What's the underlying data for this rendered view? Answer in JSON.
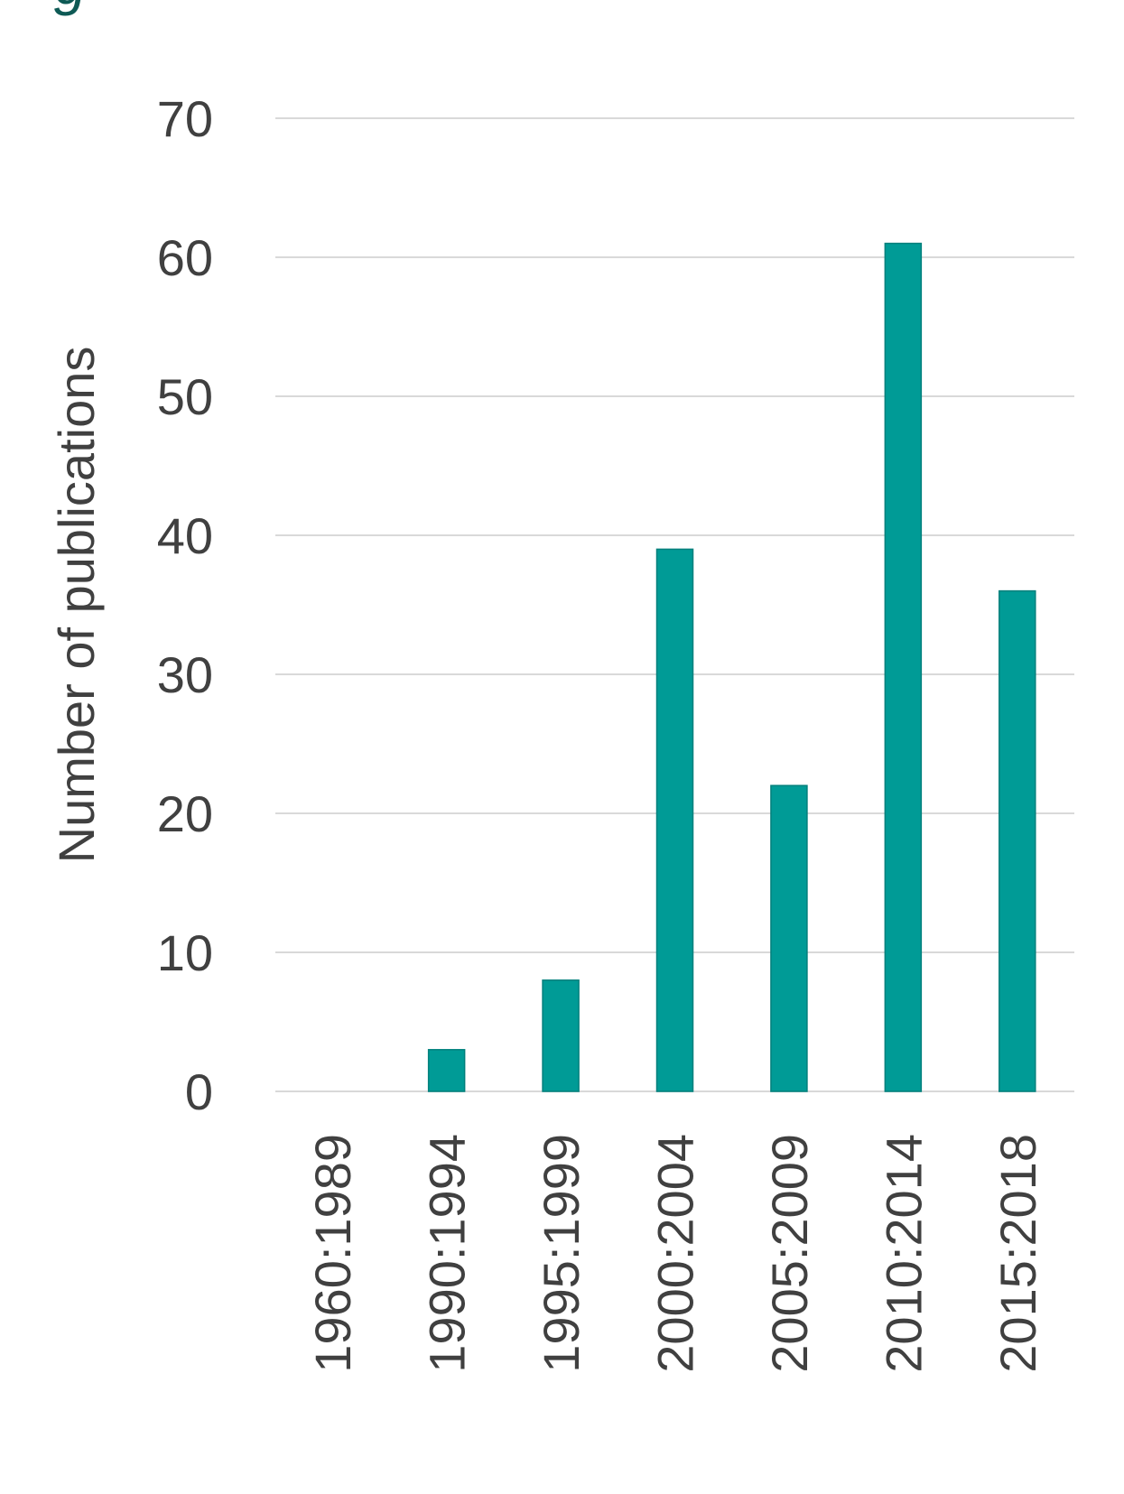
{
  "chart_data": {
    "type": "bar",
    "title": "",
    "xlabel": "",
    "ylabel": "Number of publications",
    "categories": [
      "1960:1989",
      "1990:1994",
      "1995:1999",
      "2000:2004",
      "2005:2009",
      "2010:2014",
      "2015:2018"
    ],
    "series": [
      {
        "values": [
          0,
          3,
          8,
          39,
          22,
          61,
          36
        ]
      }
    ],
    "ylim": [
      0,
      70
    ],
    "yticks": [
      0,
      10,
      20,
      30,
      40,
      50,
      60,
      70
    ],
    "grid": true,
    "legend": "none",
    "colors": {
      "bar": "#009b96",
      "bar_edge": "#00807c",
      "grid": "#d9d9d9",
      "text": "#404040"
    }
  }
}
